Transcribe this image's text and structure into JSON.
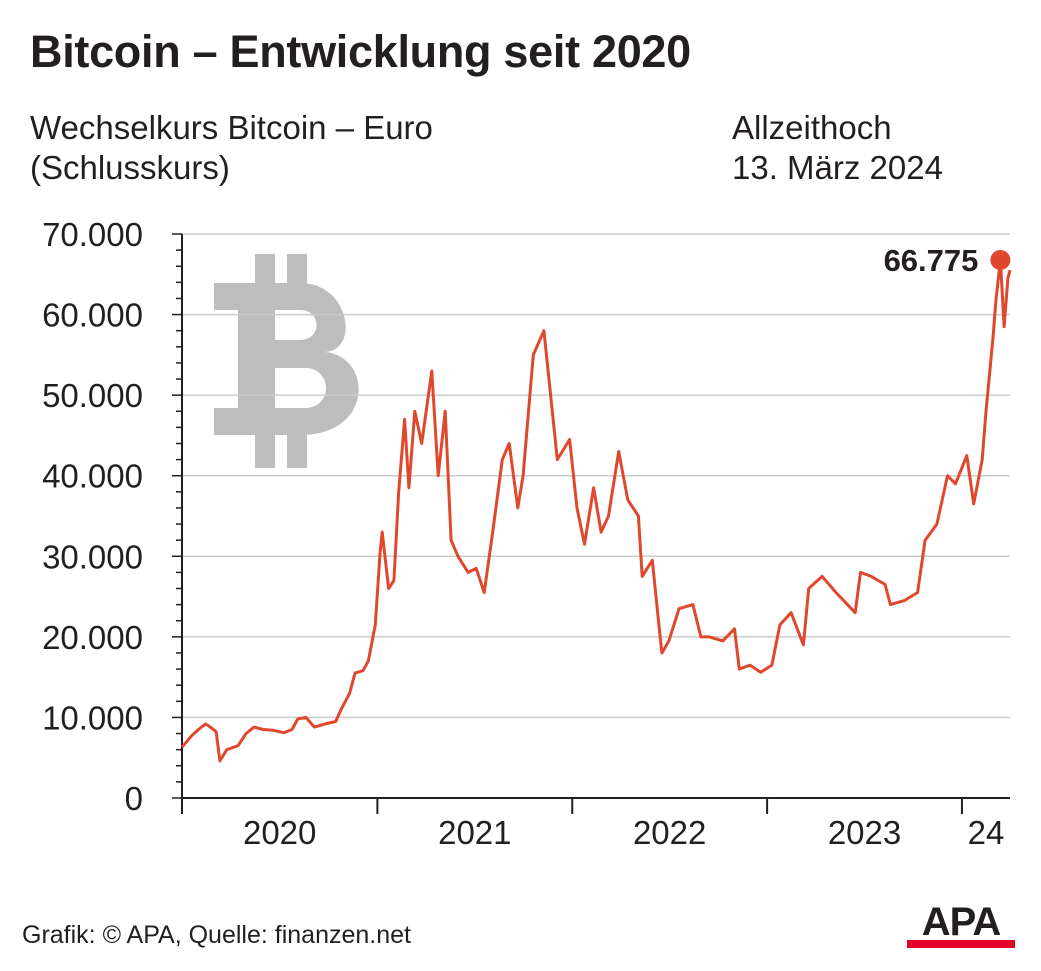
{
  "title": "Bitcoin – Entwicklung seit 2020",
  "subtitle": [
    "Wechselkurs Bitcoin – Euro",
    "(Schlusskurs)"
  ],
  "ath_note": [
    "Allzeithoch",
    "13. März 2024"
  ],
  "source": "Grafik: © APA, Quelle: finanzen.net",
  "logo_text": "APA",
  "colors": {
    "line": "#e0482d",
    "marker": "#e0482d",
    "bitcoin_symbol": "#bdbdbd",
    "grid": "#cccccc",
    "text": "#231f20",
    "logo_red": "#e4002b"
  },
  "chart_data": {
    "type": "line",
    "title": "Bitcoin – Entwicklung seit 2020",
    "subtitle": "Wechselkurs Bitcoin – Euro (Schlusskurs)",
    "xlabel": "",
    "ylabel": "",
    "ylim": [
      0,
      70000
    ],
    "xlim": [
      "2020-01-01",
      "2024-03-31"
    ],
    "yticks": [
      0,
      10000,
      20000,
      30000,
      40000,
      50000,
      60000,
      70000
    ],
    "ytick_labels": [
      "0",
      "10.000",
      "20.000",
      "30.000",
      "40.000",
      "50.000",
      "60.000",
      "70.000"
    ],
    "xtick_labels": [
      "2020",
      "2021",
      "2022",
      "2023",
      "24"
    ],
    "grid": true,
    "annotation": {
      "label": "66.775",
      "date": "2024-03-13",
      "value": 66775
    },
    "series": [
      {
        "values": [
          [
            "2020-01-01",
            6300
          ],
          [
            "2020-01-20",
            7800
          ],
          [
            "2020-02-01",
            8500
          ],
          [
            "2020-02-14",
            9200
          ],
          [
            "2020-02-25",
            8700
          ],
          [
            "2020-03-05",
            8200
          ],
          [
            "2020-03-12",
            4600
          ],
          [
            "2020-03-25",
            6000
          ],
          [
            "2020-04-15",
            6500
          ],
          [
            "2020-04-30",
            8000
          ],
          [
            "2020-05-15",
            8800
          ],
          [
            "2020-06-01",
            8500
          ],
          [
            "2020-06-20",
            8400
          ],
          [
            "2020-07-10",
            8100
          ],
          [
            "2020-07-25",
            8500
          ],
          [
            "2020-08-05",
            9800
          ],
          [
            "2020-08-20",
            10000
          ],
          [
            "2020-09-05",
            8800
          ],
          [
            "2020-09-25",
            9200
          ],
          [
            "2020-10-15",
            9500
          ],
          [
            "2020-10-25",
            11000
          ],
          [
            "2020-11-10",
            13000
          ],
          [
            "2020-11-20",
            15500
          ],
          [
            "2020-12-05",
            15800
          ],
          [
            "2020-12-15",
            17000
          ],
          [
            "2020-12-28",
            21500
          ],
          [
            "2021-01-06",
            30500
          ],
          [
            "2021-01-10",
            33000
          ],
          [
            "2021-01-22",
            26000
          ],
          [
            "2021-02-01",
            27000
          ],
          [
            "2021-02-10",
            38000
          ],
          [
            "2021-02-21",
            47000
          ],
          [
            "2021-03-01",
            38500
          ],
          [
            "2021-03-12",
            48000
          ],
          [
            "2021-03-25",
            44000
          ],
          [
            "2021-04-13",
            53000
          ],
          [
            "2021-04-25",
            40000
          ],
          [
            "2021-05-08",
            48000
          ],
          [
            "2021-05-19",
            32000
          ],
          [
            "2021-06-01",
            30000
          ],
          [
            "2021-06-20",
            28000
          ],
          [
            "2021-07-05",
            28500
          ],
          [
            "2021-07-20",
            25500
          ],
          [
            "2021-08-05",
            33000
          ],
          [
            "2021-08-23",
            42000
          ],
          [
            "2021-09-05",
            44000
          ],
          [
            "2021-09-21",
            36000
          ],
          [
            "2021-10-01",
            40000
          ],
          [
            "2021-10-20",
            55000
          ],
          [
            "2021-11-09",
            58000
          ],
          [
            "2021-11-20",
            51000
          ],
          [
            "2021-12-04",
            42000
          ],
          [
            "2021-12-27",
            44500
          ],
          [
            "2022-01-10",
            36000
          ],
          [
            "2022-01-24",
            31500
          ],
          [
            "2022-02-10",
            38500
          ],
          [
            "2022-02-24",
            33000
          ],
          [
            "2022-03-10",
            35000
          ],
          [
            "2022-03-29",
            43000
          ],
          [
            "2022-04-15",
            37000
          ],
          [
            "2022-05-05",
            35000
          ],
          [
            "2022-05-12",
            27500
          ],
          [
            "2022-05-31",
            29500
          ],
          [
            "2022-06-13",
            21000
          ],
          [
            "2022-06-18",
            18000
          ],
          [
            "2022-07-01",
            19500
          ],
          [
            "2022-07-20",
            23500
          ],
          [
            "2022-08-15",
            24000
          ],
          [
            "2022-08-30",
            20000
          ],
          [
            "2022-09-15",
            20000
          ],
          [
            "2022-10-10",
            19500
          ],
          [
            "2022-11-01",
            21000
          ],
          [
            "2022-11-10",
            16000
          ],
          [
            "2022-11-30",
            16500
          ],
          [
            "2022-12-20",
            15600
          ],
          [
            "2023-01-10",
            16500
          ],
          [
            "2023-01-25",
            21500
          ],
          [
            "2023-02-15",
            23000
          ],
          [
            "2023-03-10",
            19000
          ],
          [
            "2023-03-20",
            26000
          ],
          [
            "2023-04-14",
            27500
          ],
          [
            "2023-05-10",
            25500
          ],
          [
            "2023-06-15",
            23000
          ],
          [
            "2023-06-25",
            28000
          ],
          [
            "2023-07-15",
            27500
          ],
          [
            "2023-08-10",
            26500
          ],
          [
            "2023-08-20",
            24000
          ],
          [
            "2023-09-15",
            24500
          ],
          [
            "2023-10-10",
            25500
          ],
          [
            "2023-10-24",
            32000
          ],
          [
            "2023-11-15",
            34000
          ],
          [
            "2023-12-05",
            40000
          ],
          [
            "2023-12-20",
            39000
          ],
          [
            "2024-01-10",
            42500
          ],
          [
            "2024-01-23",
            36500
          ],
          [
            "2024-02-08",
            42000
          ],
          [
            "2024-02-15",
            48000
          ],
          [
            "2024-02-28",
            57000
          ],
          [
            "2024-03-05",
            62000
          ],
          [
            "2024-03-13",
            66775
          ],
          [
            "2024-03-20",
            58500
          ],
          [
            "2024-03-27",
            64500
          ],
          [
            "2024-03-31",
            65500
          ]
        ]
      }
    ]
  }
}
